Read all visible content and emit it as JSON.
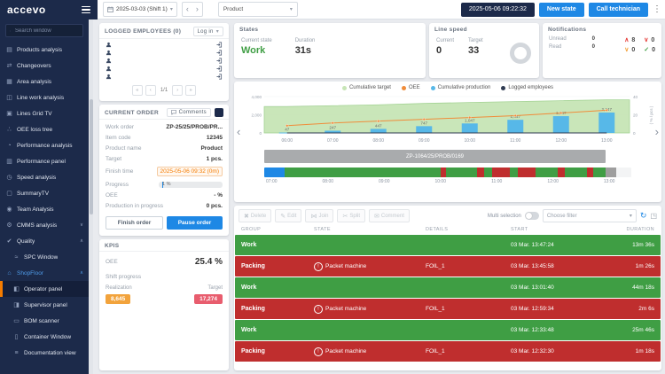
{
  "colors": {
    "accent_blue": "#1e88e5",
    "navy": "#1c2a4a",
    "row_green": "#3f9e44",
    "row_red": "#bf2e2e",
    "state_blue": "#1e88e5",
    "state_gray": "#9e9e9e",
    "kpi_orange": "#f2a33c",
    "kpi_pink": "#e85d6e",
    "alert_orange": "#f57c00"
  },
  "topbar": {
    "logo": "accevo",
    "date_shift": "2025-03-03 (Shift 1)",
    "product_filter": "Product",
    "clock": "2025-05-06 09:22:32",
    "new_state": "New state",
    "call_technician": "Call technician"
  },
  "sidebar": {
    "search_placeholder": "Search window",
    "items": [
      {
        "label": "Products analysis",
        "icon": "products-analysis-icon"
      },
      {
        "label": "Changeovers",
        "icon": "changeovers-icon"
      },
      {
        "label": "Area analysis",
        "icon": "area-analysis-icon"
      },
      {
        "label": "Line work analysis",
        "icon": "line-work-analysis-icon"
      },
      {
        "label": "Lines Grid TV",
        "icon": "lines-grid-tv-icon"
      },
      {
        "label": "OEE loss tree",
        "icon": "oee-loss-tree-icon"
      },
      {
        "label": "Performance analysis",
        "icon": "performance-analysis-icon"
      },
      {
        "label": "Performance panel",
        "icon": "performance-panel-icon"
      },
      {
        "label": "Speed analysis",
        "icon": "speed-analysis-icon"
      },
      {
        "label": "SummaryTV",
        "icon": "summary-tv-icon"
      },
      {
        "label": "Team Analysis",
        "icon": "team-analysis-icon"
      },
      {
        "label": "CMMS analysis",
        "icon": "cmms-analysis-icon",
        "expandable": true,
        "expanded": false
      },
      {
        "label": "Quality",
        "icon": "quality-icon",
        "expandable": true,
        "expanded": true
      },
      {
        "label": "SPC Window",
        "icon": "spc-window-icon",
        "child": true
      },
      {
        "label": "ShopFloor",
        "icon": "shopfloor-icon",
        "expandable": true,
        "expanded": true,
        "highlight": true
      },
      {
        "label": "Operator panel",
        "icon": "operator-panel-icon",
        "child": true,
        "active": true
      },
      {
        "label": "Supervisor panel",
        "icon": "supervisor-panel-icon",
        "child": true
      },
      {
        "label": "BOM scanner",
        "icon": "bom-scanner-icon",
        "child": true
      },
      {
        "label": "Container Window",
        "icon": "container-window-icon",
        "child": true
      },
      {
        "label": "Documentation view",
        "icon": "documentation-view-icon",
        "child": true
      }
    ]
  },
  "employees": {
    "title": "LOGGED EMPLOYEES (0)",
    "login": "Log in",
    "rows": [
      {
        "name": ""
      },
      {
        "name": ""
      },
      {
        "name": ""
      },
      {
        "name": ""
      },
      {
        "name": ""
      }
    ],
    "page": "1/1"
  },
  "current_order": {
    "title": "CURRENT ORDER",
    "comments": "Comments",
    "fields": [
      {
        "label": "Work order",
        "value": "ZP-25/25/PROB/PR..."
      },
      {
        "label": "Item code",
        "value": "12345"
      },
      {
        "label": "Product name",
        "value": "Product"
      },
      {
        "label": "Target",
        "value": "1 pcs."
      },
      {
        "label": "Finish time",
        "value": "2025-05-06 09:32 (0m)",
        "style": "alert"
      },
      {
        "label": "Progress",
        "value": "1 %",
        "type": "progress",
        "percent": 1
      },
      {
        "label": "OEE",
        "value": "- %"
      },
      {
        "label": "Production in progress",
        "value": "0 pcs."
      }
    ],
    "finish_order": "Finish order",
    "pause_order": "Pause order"
  },
  "kpis": {
    "title": "KPIS",
    "oee_label": "OEE",
    "oee_value": "25.4 %",
    "shift_progress_label": "Shift progress",
    "realization_label": "Realization",
    "target_label": "Target",
    "realization_value": "8,645",
    "target_value": "17,274"
  },
  "states_panel": {
    "title": "States",
    "current_state_label": "Current state",
    "current_state": "Work",
    "duration_label": "Duration",
    "duration": "31s"
  },
  "line_speed": {
    "title": "Line speed",
    "current_label": "Current",
    "current": "0",
    "target_label": "Target",
    "target": "33"
  },
  "notifications": {
    "title": "Notifications",
    "badges": [
      {
        "icon": "chevron-up-icon",
        "glyph": "up",
        "count": "8",
        "color": "#e53935"
      },
      {
        "icon": "chevron-down-icon",
        "glyph": "down",
        "count": "0",
        "color": "#e53935"
      },
      {
        "icon": "chevron-down-icon",
        "glyph": "down",
        "count": "0",
        "color": "#f2a33c"
      },
      {
        "icon": "check-icon",
        "glyph": "check",
        "count": "0",
        "color": "#3f9e44"
      }
    ],
    "unread_label": "Unread",
    "unread_value": "0",
    "read_label": "Read",
    "read_value": "0"
  },
  "chart_data": {
    "type": "bar",
    "x": [
      "06:00",
      "07:00",
      "08:00",
      "09:00",
      "10:00",
      "11:00",
      "12:00",
      "13:00"
    ],
    "series": [
      {
        "name": "Cumulative target",
        "kind": "area",
        "axis": "left",
        "color": "#c7e5b6",
        "stroke": "#9fd18e",
        "values": [
          2900,
          3000,
          3100,
          3250,
          3350,
          3450,
          3550,
          3650
        ]
      },
      {
        "name": "OEE",
        "kind": "line",
        "axis": "right",
        "color": "#f08c3a",
        "values": [
          8,
          11,
          13,
          15,
          17,
          19,
          22,
          25
        ]
      },
      {
        "name": "Cumulative production",
        "kind": "bar",
        "axis": "left",
        "color": "#57b8e8",
        "values": [
          47,
          247,
          447,
          747,
          1047,
          1447,
          1847,
          2247
        ]
      },
      {
        "name": "Logged employees",
        "kind": "line",
        "axis": "right",
        "color": "#2f3b52",
        "values": [
          0,
          0,
          0,
          0,
          0,
          0,
          0,
          0
        ]
      }
    ],
    "left_axis": {
      "min": 0,
      "max": 4000,
      "ticks": [
        "0",
        "2,000",
        "4,000"
      ]
    },
    "right_axis": {
      "min": 0,
      "max": 40,
      "ticks": [
        "0",
        "20",
        "40"
      ],
      "label": "( % / pcs )"
    },
    "legend_position": "top",
    "title": ""
  },
  "timeline": {
    "order_bar": {
      "label": "ZP-1064/25/PROB/0169",
      "width_pct": 93
    },
    "segments": [
      {
        "state": "Changeover",
        "color_key": "state_blue",
        "start": 0,
        "end": 5.5
      },
      {
        "state": "Work",
        "color_key": "row_green",
        "start": 5.5,
        "end": 48
      },
      {
        "state": "Packing",
        "color_key": "row_red",
        "start": 48,
        "end": 49.5
      },
      {
        "state": "Work",
        "color_key": "row_green",
        "start": 49.5,
        "end": 58
      },
      {
        "state": "Packing",
        "color_key": "row_red",
        "start": 58,
        "end": 60
      },
      {
        "state": "Work",
        "color_key": "row_green",
        "start": 60,
        "end": 62
      },
      {
        "state": "Packing",
        "color_key": "row_red",
        "start": 62,
        "end": 67
      },
      {
        "state": "Work",
        "color_key": "row_green",
        "start": 67,
        "end": 69
      },
      {
        "state": "Packing",
        "color_key": "row_red",
        "start": 69,
        "end": 74
      },
      {
        "state": "Work",
        "color_key": "row_green",
        "start": 74,
        "end": 80
      },
      {
        "state": "Packing",
        "color_key": "row_red",
        "start": 80,
        "end": 82
      },
      {
        "state": "Work",
        "color_key": "row_green",
        "start": 82,
        "end": 88
      },
      {
        "state": "Packing",
        "color_key": "row_red",
        "start": 88,
        "end": 89.5
      },
      {
        "state": "Work",
        "color_key": "row_green",
        "start": 89.5,
        "end": 93
      },
      {
        "state": "Idle",
        "color_key": "state_gray",
        "start": 93,
        "end": 96
      }
    ],
    "time_ticks": [
      "07:00",
      "08:00",
      "09:00",
      "10:00",
      "11:00",
      "12:00",
      "13:00"
    ]
  },
  "state_table": {
    "toolbar": {
      "buttons": [
        {
          "label": "Delete",
          "icon": "trash-icon"
        },
        {
          "label": "Edit",
          "icon": "edit-icon"
        },
        {
          "label": "Join",
          "icon": "join-icon"
        },
        {
          "label": "Split",
          "icon": "split-icon"
        },
        {
          "label": "Comment",
          "icon": "comment-icon"
        }
      ],
      "multi_selection_label": "Multi selection",
      "filter_placeholder": "Choose filter"
    },
    "columns": [
      "GROUP",
      "STATE",
      "DETAILS",
      "START",
      "DURATION"
    ],
    "rows": [
      {
        "group": "Work",
        "state": "",
        "details": "",
        "start": "03 Mar. 13:47:24",
        "duration": "13m 36s",
        "color": "green",
        "warning": false
      },
      {
        "group": "Packing",
        "state": "Packet machine",
        "details": "FOIL_1",
        "start": "03 Mar. 13:45:58",
        "duration": "1m 26s",
        "color": "red",
        "warning": true
      },
      {
        "group": "Work",
        "state": "",
        "details": "",
        "start": "03 Mar. 13:01:40",
        "duration": "44m 18s",
        "color": "green",
        "warning": false
      },
      {
        "group": "Packing",
        "state": "Packet machine",
        "details": "FOIL_1",
        "start": "03 Mar. 12:59:34",
        "duration": "2m 6s",
        "color": "red",
        "warning": true
      },
      {
        "group": "Work",
        "state": "",
        "details": "",
        "start": "03 Mar. 12:33:48",
        "duration": "25m 46s",
        "color": "green",
        "warning": false
      },
      {
        "group": "Packing",
        "state": "Packet machine",
        "details": "FOIL_1",
        "start": "03 Mar. 12:32:30",
        "duration": "1m 18s",
        "color": "red",
        "warning": true
      }
    ]
  }
}
